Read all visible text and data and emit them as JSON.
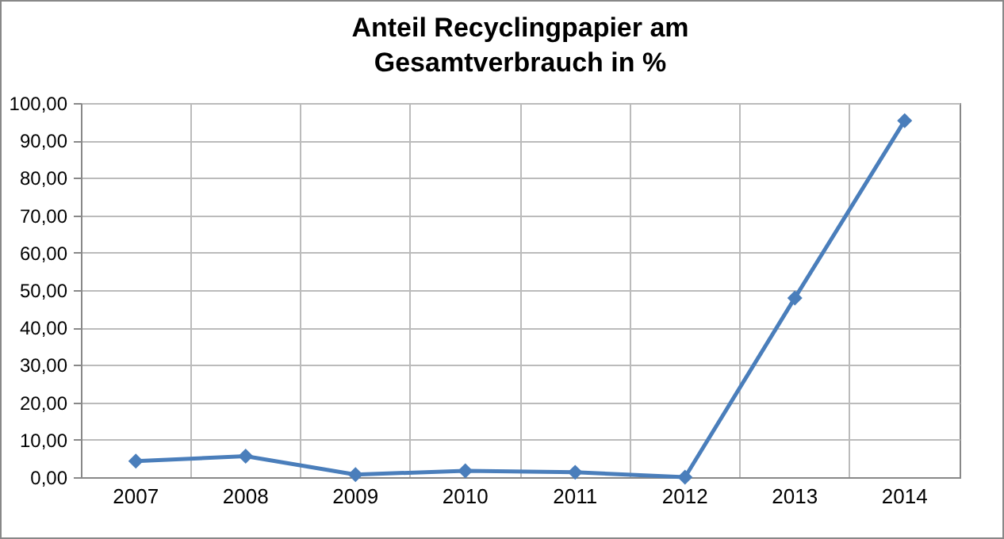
{
  "chart_data": {
    "type": "line",
    "title": "Anteil Recyclingpapier am\nGesamtverbrauch in %",
    "categories": [
      "2007",
      "2008",
      "2009",
      "2010",
      "2011",
      "2012",
      "2013",
      "2014"
    ],
    "series": [
      {
        "color": "#4a7ebb",
        "values": [
          4.3,
          5.6,
          0.7,
          1.7,
          1.3,
          0,
          47.9,
          95.3
        ]
      }
    ],
    "ylim": [
      0,
      100
    ],
    "yticks": [
      {
        "value": 0,
        "label": "0,00"
      },
      {
        "value": 10,
        "label": "10,00"
      },
      {
        "value": 20,
        "label": "20,00"
      },
      {
        "value": 30,
        "label": "30,00"
      },
      {
        "value": 40,
        "label": "40,00"
      },
      {
        "value": 50,
        "label": "50,00"
      },
      {
        "value": 60,
        "label": "60,00"
      },
      {
        "value": 70,
        "label": "70,00"
      },
      {
        "value": 80,
        "label": "80,00"
      },
      {
        "value": 90,
        "label": "90,00"
      },
      {
        "value": 100,
        "label": "100,00"
      }
    ],
    "grid": true,
    "marker": "diamond",
    "line_style": "solid"
  }
}
